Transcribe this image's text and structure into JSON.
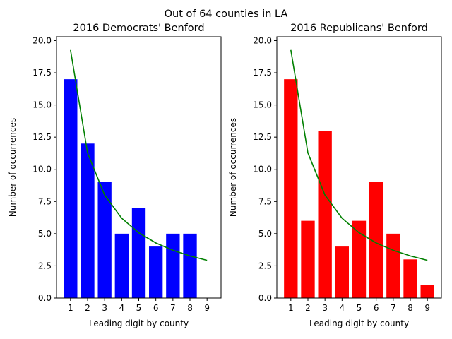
{
  "suptitle": "Out of 64 counties in LA",
  "chart_data": [
    {
      "type": "bar",
      "title": "2016 Democrats' Benford",
      "xlabel": "Leading digit by county",
      "ylabel": "Number of occurrences",
      "categories": [
        "1",
        "2",
        "3",
        "4",
        "5",
        "6",
        "7",
        "8",
        "9"
      ],
      "values": [
        17,
        12,
        9,
        5,
        7,
        4,
        5,
        5,
        0
      ],
      "bar_color": "#0000ff",
      "ylim": [
        0,
        20.3
      ],
      "yticks": [
        "0.0",
        "2.5",
        "5.0",
        "7.5",
        "10.0",
        "12.5",
        "15.0",
        "17.5",
        "20.0"
      ],
      "grid": false,
      "overlay_line": {
        "type": "line",
        "color": "#008000",
        "values": [
          19.27,
          11.27,
          8.0,
          6.2,
          5.07,
          4.28,
          3.71,
          3.27,
          2.93
        ]
      }
    },
    {
      "type": "bar",
      "title": "2016 Republicans' Benford",
      "xlabel": "Leading digit by county",
      "ylabel": "Number of occurrences",
      "categories": [
        "1",
        "2",
        "3",
        "4",
        "5",
        "6",
        "7",
        "8",
        "9"
      ],
      "values": [
        17,
        6,
        13,
        4,
        6,
        9,
        5,
        3,
        1
      ],
      "bar_color": "#ff0000",
      "ylim": [
        0,
        20.3
      ],
      "yticks": [
        "0.0",
        "2.5",
        "5.0",
        "7.5",
        "10.0",
        "12.5",
        "15.0",
        "17.5",
        "20.0"
      ],
      "grid": false,
      "overlay_line": {
        "type": "line",
        "color": "#008000",
        "values": [
          19.27,
          11.27,
          8.0,
          6.2,
          5.07,
          4.28,
          3.71,
          3.27,
          2.93
        ]
      }
    }
  ]
}
